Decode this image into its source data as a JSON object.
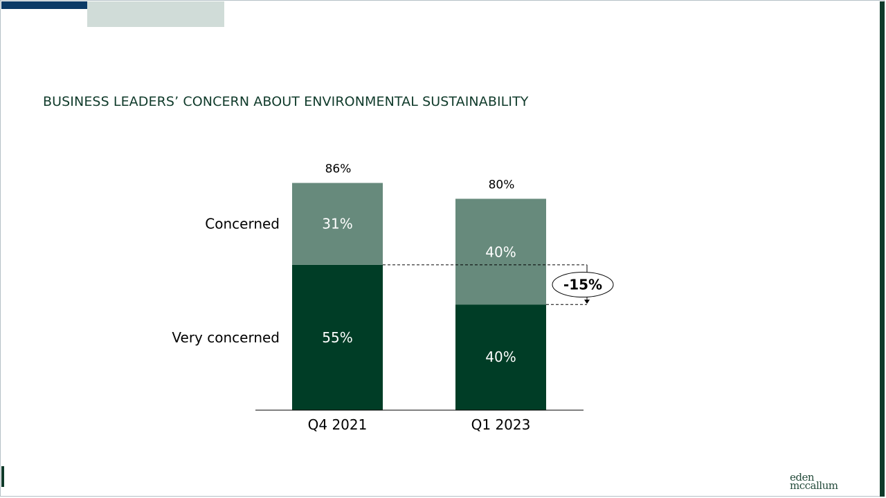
{
  "title": "BUSINESS LEADERS’ CONCERN ABOUT ENVIRONMENTAL SUSTAINABILITY",
  "logo": {
    "line1": "eden",
    "line2": "mccallum"
  },
  "colors": {
    "very_concerned": "#003d26",
    "concerned": "#678a7c",
    "accent_navy": "#0b3a66",
    "accent_grey": "#d0dcd8"
  },
  "chart_data": {
    "type": "bar",
    "stacked": true,
    "categories": [
      "Q4 2021",
      "Q1 2023"
    ],
    "series": [
      {
        "name": "Very concerned",
        "values": [
          55,
          40
        ],
        "labels": [
          "55%",
          "40%"
        ]
      },
      {
        "name": "Concerned",
        "values": [
          31,
          40
        ],
        "labels": [
          "31%",
          "40%"
        ]
      }
    ],
    "totals": [
      86,
      80
    ],
    "total_labels": [
      "86%",
      "80%"
    ],
    "annotation": {
      "label": "-15%",
      "from": 55,
      "to": 40
    },
    "ylim": [
      0,
      100
    ]
  }
}
